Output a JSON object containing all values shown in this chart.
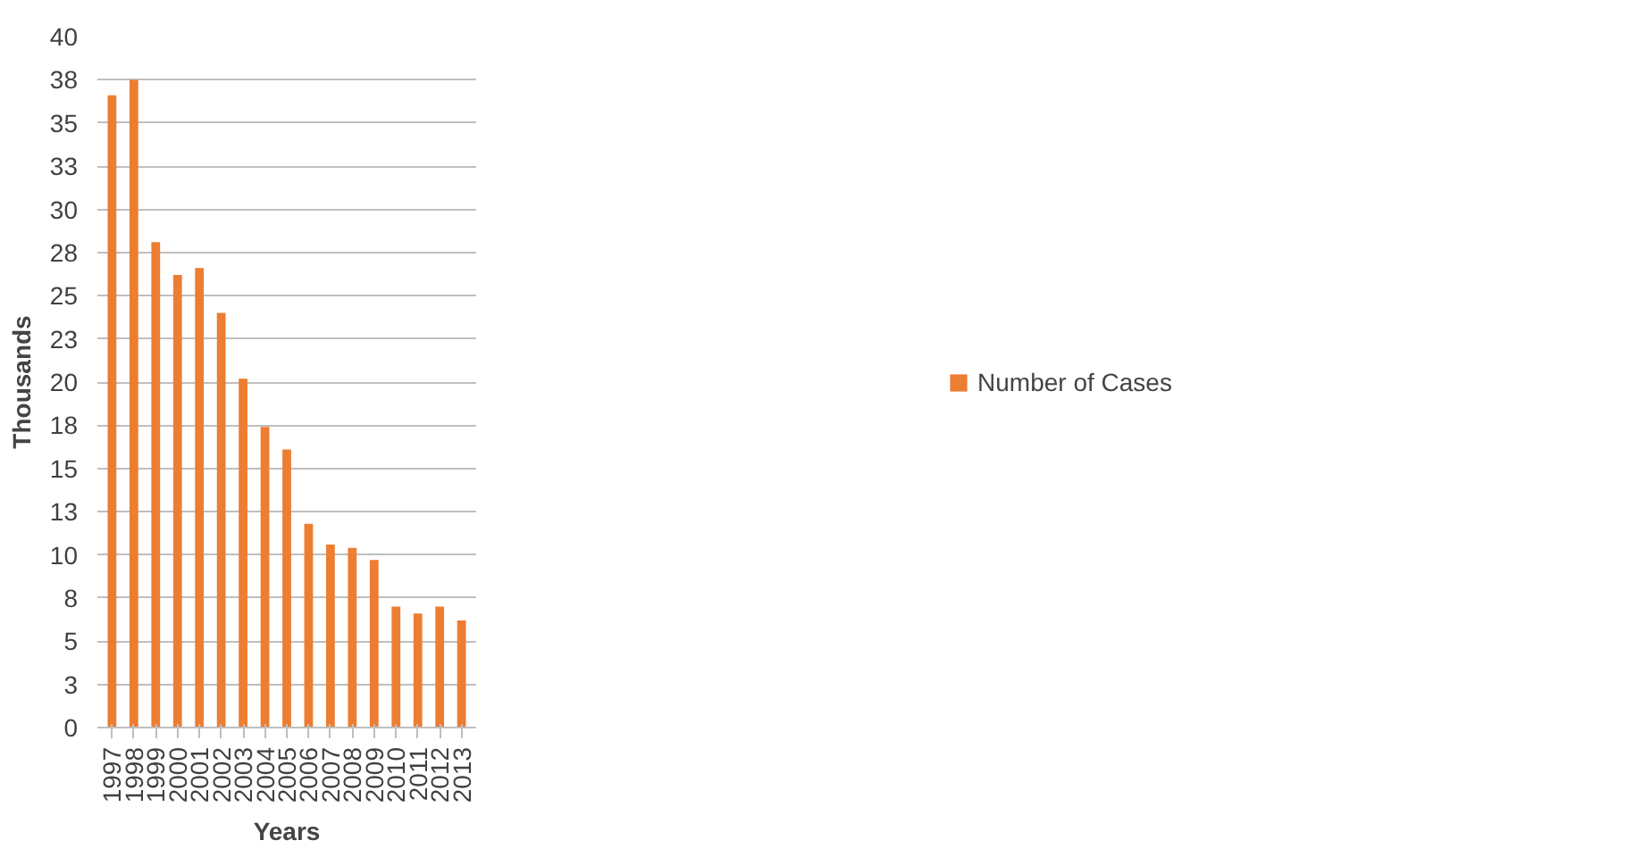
{
  "chart_data": {
    "type": "bar",
    "xlabel": "Years",
    "ylabel": "Thousands",
    "categories": [
      "1997",
      "1998",
      "1999",
      "2000",
      "2001",
      "2002",
      "2003",
      "2004",
      "2005",
      "2006",
      "2007",
      "2008",
      "2009",
      "2010",
      "2011",
      "2012",
      "2013"
    ],
    "series": [
      {
        "name": "Number of Cases",
        "color": "#ed7d31",
        "values": [
          36.6,
          37.5,
          28.1,
          26.2,
          26.6,
          24.0,
          20.2,
          17.4,
          16.1,
          11.8,
          10.6,
          10.4,
          9.7,
          7.0,
          6.6,
          7.0,
          6.2
        ]
      }
    ],
    "ylim": [
      0,
      40
    ],
    "yticks": [
      0,
      {
        "value": 2.5,
        "label": "3"
      },
      5,
      {
        "value": 7.5,
        "label": "8"
      },
      10,
      {
        "value": 12.5,
        "label": "13"
      },
      15,
      {
        "value": 17.5,
        "label": "18"
      },
      20,
      {
        "value": 22.5,
        "label": "23"
      },
      25,
      {
        "value": 27.5,
        "label": "28"
      },
      30,
      {
        "value": 32.5,
        "label": "33"
      },
      35,
      {
        "value": 37.5,
        "label": "38"
      },
      40
    ],
    "grid": "y",
    "legend": "right"
  }
}
